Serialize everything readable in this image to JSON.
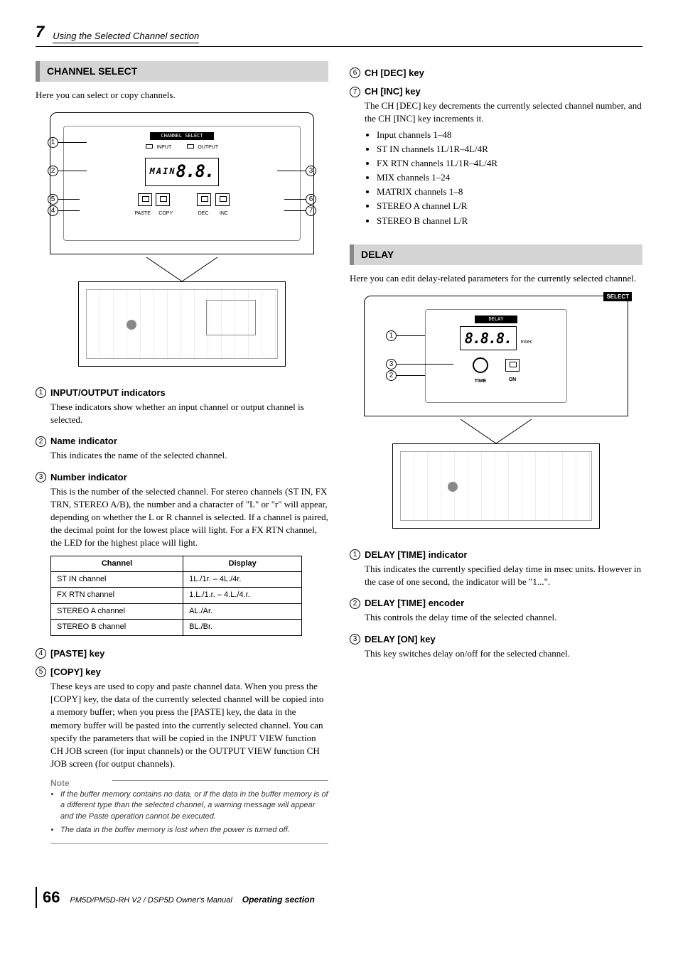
{
  "header": {
    "chapter_num": "7",
    "chapter_title": "Using the Selected Channel section"
  },
  "left": {
    "section_title": "CHANNEL SELECT",
    "intro": "Here you can select or copy channels.",
    "diagram": {
      "top_label": "CHANNEL SELECT",
      "input_label": "INPUT",
      "output_label": "OUTPUT",
      "name_text": "MAIN",
      "num_text": "8.8.",
      "paste_label": "PASTE",
      "copy_label": "COPY",
      "dec_label": "DEC",
      "inc_label": "INC"
    },
    "items": [
      {
        "num": 1,
        "title": "INPUT/OUTPUT indicators",
        "desc": "These indicators show whether an input channel or output channel is selected."
      },
      {
        "num": 2,
        "title": "Name indicator",
        "desc": "This indicates the name of the selected channel."
      },
      {
        "num": 3,
        "title": "Number indicator",
        "desc": "This is the number of the selected channel. For stereo channels (ST IN, FX TRN, STEREO A/B), the number and a character of \"L\" or \"r\" will appear, depending on whether the L or R channel is selected. If a channel is paired, the decimal point for the lowest place will light. For a FX RTN channel, the LED for the highest place will light."
      }
    ],
    "table": {
      "head": [
        "Channel",
        "Display"
      ],
      "rows": [
        [
          "ST IN channel",
          "1L./1r. – 4L./4r."
        ],
        [
          "FX RTN channel",
          "1.L./1.r. – 4.L./4.r."
        ],
        [
          "STEREO A channel",
          "AL./Ar."
        ],
        [
          "STEREO B channel",
          "BL./Br."
        ]
      ]
    },
    "items2": [
      {
        "num": 4,
        "title": "[PASTE] key"
      },
      {
        "num": 5,
        "title": "[COPY] key",
        "desc": "These keys are used to copy and paste channel data. When you press the [COPY] key, the data of the currently selected channel will be copied into a memory buffer; when you press the [PASTE] key, the data in the memory buffer will be pasted into the currently selected channel. You can specify the parameters that will be copied in the INPUT VIEW function CH JOB screen (for input channels) or the OUTPUT VIEW function CH JOB screen (for output channels)."
      }
    ],
    "note_label": "Note",
    "notes": [
      "If the buffer memory contains no data, or if the data in the buffer memory is of a different type than the selected channel, a warning message will appear and the Paste operation cannot be executed.",
      "The data in the buffer memory is lost when the power is turned off."
    ]
  },
  "right": {
    "top_items": [
      {
        "num": 6,
        "title": "CH [DEC] key"
      },
      {
        "num": 7,
        "title": "CH [INC] key",
        "desc": "The CH [DEC] key decrements the currently selected channel number, and the CH [INC] key increments it."
      }
    ],
    "bullets": [
      "Input channels 1–48",
      "ST IN channels 1L/1R–4L/4R",
      "FX RTN channels 1L/1R–4L/4R",
      "MIX channels 1–24",
      "MATRIX channels 1–8",
      "STEREO A channel L/R",
      "STEREO B channel L/R"
    ],
    "section_title": "DELAY",
    "intro": "Here you can edit delay-related parameters for the currently selected channel.",
    "diagram": {
      "select_label": "SELECT",
      "delay_label": "DELAY",
      "num_text": "8.8.8.",
      "msec_label": "msec",
      "time_label": "TIME",
      "on_label": "ON"
    },
    "items": [
      {
        "num": 1,
        "title": "DELAY [TIME] indicator",
        "desc": "This indicates the currently specified delay time in msec units. However in the case of one second, the indicator will be \"1...\"."
      },
      {
        "num": 2,
        "title": "DELAY [TIME] encoder",
        "desc": "This controls the delay time of the selected channel."
      },
      {
        "num": 3,
        "title": "DELAY [ON] key",
        "desc": "This key switches delay on/off for the selected channel."
      }
    ]
  },
  "footer": {
    "page": "66",
    "manual": "PM5D/PM5D-RH V2 / DSP5D Owner's Manual",
    "section": "Operating section"
  }
}
